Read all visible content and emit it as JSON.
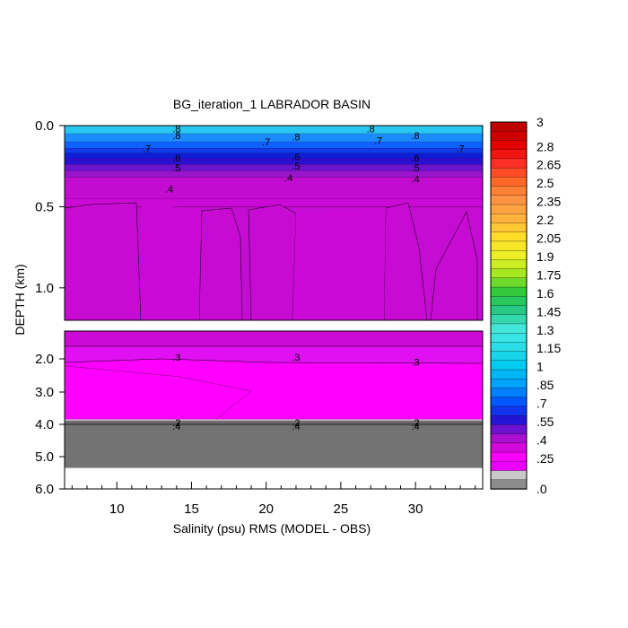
{
  "chart_data": {
    "type": "heatmap",
    "title": "BG_iteration_1 LABRADOR BASIN",
    "xlabel": "Salinity (psu) RMS (MODEL - OBS)",
    "ylabel": "DEPTH (km)",
    "x_range": [
      6.5,
      34.5
    ],
    "x_ticks": [
      "10",
      "15",
      "20",
      "25",
      "30"
    ],
    "x_tick_values": [
      10,
      15,
      20,
      25,
      30
    ],
    "upper_panel": {
      "depth_range_km": [
        0.0,
        1.2
      ],
      "y_ticks": [
        "0.0",
        "0.5",
        "1.0"
      ],
      "y_tick_values": [
        0.0,
        0.5,
        1.0
      ],
      "layers": [
        {
          "depth_km": 0.0,
          "value": 0.8,
          "color": "#29c6f0"
        },
        {
          "depth_km": 0.05,
          "value": 0.75,
          "color": "#1a8cff"
        },
        {
          "depth_km": 0.1,
          "value": 0.7,
          "color": "#1060ff"
        },
        {
          "depth_km": 0.14,
          "value": 0.65,
          "color": "#0f3be8"
        },
        {
          "depth_km": 0.17,
          "value": 0.6,
          "color": "#0c1ed6"
        },
        {
          "depth_km": 0.2,
          "value": 0.55,
          "color": "#2a10cf"
        },
        {
          "depth_km": 0.24,
          "value": 0.5,
          "color": "#6a14cc"
        },
        {
          "depth_km": 0.28,
          "value": 0.45,
          "color": "#9a14cc"
        },
        {
          "depth_km": 0.32,
          "value": 0.4,
          "color": "#c20ccf"
        },
        {
          "depth_km": 0.45,
          "value": 0.35,
          "color": "#cc0ad6"
        }
      ],
      "column_patches_value": 0.35,
      "contour_labels": [
        {
          "text": ".8",
          "x": 14.0,
          "depth_km": 0.02
        },
        {
          "text": ".8",
          "x": 14.0,
          "depth_km": 0.06
        },
        {
          "text": ".7",
          "x": 12.0,
          "depth_km": 0.14
        },
        {
          "text": ".7",
          "x": 20.0,
          "depth_km": 0.1
        },
        {
          "text": ".8",
          "x": 22.0,
          "depth_km": 0.07
        },
        {
          "text": ".8",
          "x": 27.0,
          "depth_km": 0.02
        },
        {
          "text": ".7",
          "x": 27.5,
          "depth_km": 0.09
        },
        {
          "text": ".8",
          "x": 30.0,
          "depth_km": 0.06
        },
        {
          "text": ".7",
          "x": 33.0,
          "depth_km": 0.14
        },
        {
          "text": ".6",
          "x": 14.0,
          "depth_km": 0.2
        },
        {
          "text": ".6",
          "x": 22.0,
          "depth_km": 0.19
        },
        {
          "text": ".6",
          "x": 30.0,
          "depth_km": 0.2
        },
        {
          "text": ".5",
          "x": 14.0,
          "depth_km": 0.26
        },
        {
          "text": ".5",
          "x": 22.0,
          "depth_km": 0.25
        },
        {
          "text": ".5",
          "x": 30.0,
          "depth_km": 0.26
        },
        {
          "text": ".4",
          "x": 13.5,
          "depth_km": 0.39
        },
        {
          "text": ".4",
          "x": 21.5,
          "depth_km": 0.32
        },
        {
          "text": ".4",
          "x": 30.0,
          "depth_km": 0.33
        }
      ]
    },
    "lower_panel": {
      "depth_range_km": [
        1.2,
        6.0
      ],
      "y_ticks": [
        "2.0",
        "3.0",
        "4.0",
        "5.0",
        "6.0"
      ],
      "y_tick_values": [
        2.0,
        3.0,
        4.0,
        5.0,
        6.0
      ],
      "bottom_value_above": 0.3,
      "top_value": 0.35,
      "land_depth_km": 3.9,
      "data_bottom_km": 5.35,
      "contour_labels": [
        {
          "text": ".3",
          "x": 14.0,
          "depth_km": 1.95
        },
        {
          "text": ".3",
          "x": 22.0,
          "depth_km": 1.95
        },
        {
          "text": ".3",
          "x": 30.0,
          "depth_km": 2.1
        },
        {
          "text": ".2",
          "x": 14.0,
          "depth_km": 3.95
        },
        {
          "text": ".4",
          "x": 14.0,
          "depth_km": 4.05
        },
        {
          "text": ".2",
          "x": 22.0,
          "depth_km": 3.95
        },
        {
          "text": ".4",
          "x": 22.0,
          "depth_km": 4.05
        },
        {
          "text": ".2",
          "x": 30.0,
          "depth_km": 3.95
        },
        {
          "text": ".4",
          "x": 30.0,
          "depth_km": 4.05
        }
      ]
    },
    "colorbar": {
      "min": 0,
      "max": 3,
      "labels": [
        "3",
        "2.8",
        "2.65",
        "2.5",
        "2.35",
        "2.2",
        "2.05",
        "1.9",
        "1.75",
        "1.6",
        "1.45",
        "1.3",
        "1.15",
        "1",
        ".85",
        ".7",
        ".55",
        ".4",
        ".25",
        ".0"
      ],
      "label_values": [
        3,
        2.8,
        2.65,
        2.5,
        2.35,
        2.2,
        2.05,
        1.9,
        1.75,
        1.6,
        1.45,
        1.3,
        1.15,
        1,
        0.85,
        0.7,
        0.55,
        0.4,
        0.25,
        0.0
      ],
      "levels": 40
    },
    "colors": {
      "land": "#737373",
      "background": "#ffffff"
    }
  }
}
